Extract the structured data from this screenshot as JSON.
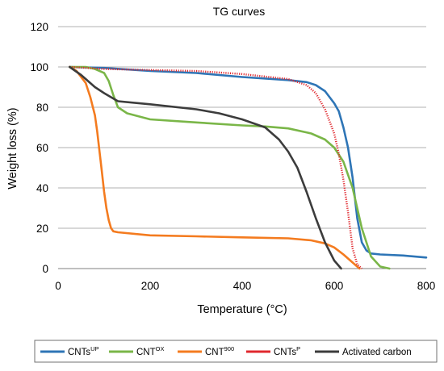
{
  "chart_data": {
    "type": "line",
    "title": "TG curves",
    "xlabel": "Temperature (°C)",
    "ylabel": "Weight loss (%)",
    "xlim": [
      0,
      800
    ],
    "ylim": [
      0,
      120
    ],
    "xticks": [
      "0",
      "200",
      "400",
      "600",
      "800"
    ],
    "yticks": [
      "0",
      "20",
      "40",
      "60",
      "80",
      "100",
      "120"
    ],
    "grid": "horizontal",
    "legend_position": "bottom",
    "series": [
      {
        "name": "CNTs",
        "name_sup": "UP",
        "color": "#2E75B6",
        "style": "solid",
        "x": [
          25,
          100,
          200,
          300,
          400,
          500,
          540,
          560,
          580,
          600,
          610,
          620,
          630,
          640,
          650,
          660,
          670,
          680,
          700,
          750,
          800
        ],
        "y": [
          100,
          99.5,
          98,
          97,
          95,
          93.5,
          92.5,
          91,
          88,
          82,
          78,
          70,
          60,
          45,
          25,
          13,
          9,
          7.5,
          7,
          6.5,
          5.5
        ]
      },
      {
        "name": "CNT",
        "name_sup": "OX",
        "color": "#7AB648",
        "style": "solid",
        "x": [
          25,
          60,
          80,
          100,
          110,
          120,
          130,
          150,
          200,
          300,
          400,
          450,
          500,
          550,
          580,
          600,
          620,
          640,
          660,
          680,
          700,
          720
        ],
        "y": [
          100,
          100,
          99,
          97,
          93,
          86,
          80,
          77,
          74,
          72.5,
          71,
          70.5,
          69.5,
          67,
          64,
          60,
          53,
          40,
          20,
          6,
          1,
          0
        ]
      },
      {
        "name": "CNT",
        "name_sup": "900",
        "color": "#F47B1F",
        "style": "solid",
        "x": [
          25,
          40,
          60,
          70,
          80,
          85,
          90,
          95,
          100,
          105,
          110,
          115,
          120,
          130,
          200,
          300,
          400,
          500,
          550,
          580,
          600,
          620,
          640,
          650,
          655
        ],
        "y": [
          100,
          98,
          92,
          85,
          76,
          68,
          58,
          48,
          38,
          30,
          24,
          20,
          18.5,
          18,
          16.5,
          16,
          15.5,
          15,
          14,
          12.5,
          10.5,
          7,
          3,
          1,
          0
        ]
      },
      {
        "name": "CNTs",
        "name_sup": "P",
        "color": "#E0282E",
        "style": "dotted",
        "x": [
          25,
          100,
          200,
          300,
          400,
          500,
          540,
          560,
          580,
          600,
          610,
          620,
          630,
          640,
          650,
          660
        ],
        "y": [
          100,
          99,
          98.5,
          98,
          96.5,
          94,
          91,
          87,
          79,
          67,
          57,
          44,
          28,
          10,
          2,
          0
        ]
      },
      {
        "name": "Activated carbon",
        "name_sup": "",
        "color": "#3C3C3C",
        "style": "solid",
        "x": [
          25,
          50,
          80,
          100,
          130,
          200,
          300,
          350,
          400,
          450,
          480,
          500,
          520,
          540,
          560,
          580,
          600,
          615
        ],
        "y": [
          100,
          96,
          90,
          87,
          83,
          81.5,
          79,
          77,
          74,
          70,
          64,
          58,
          50,
          38,
          25,
          13,
          4,
          0
        ]
      }
    ]
  }
}
